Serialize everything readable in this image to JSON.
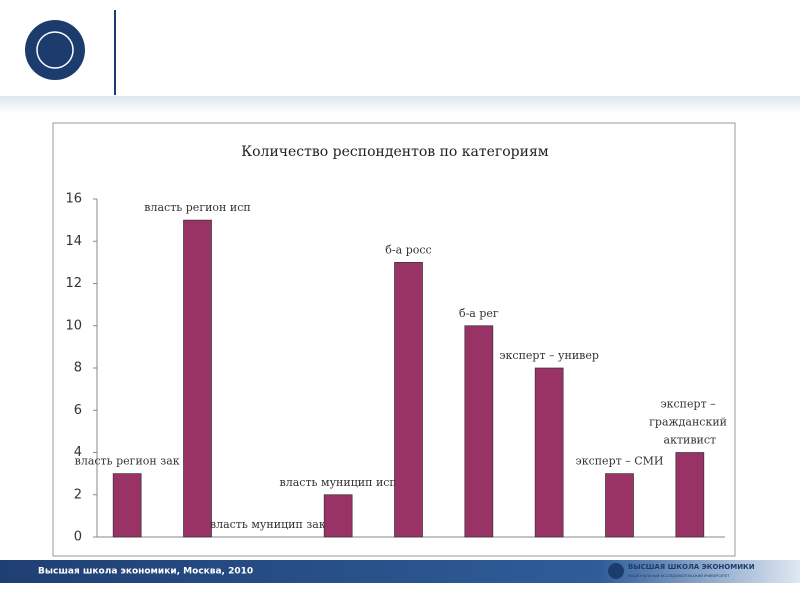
{
  "chart_data": {
    "type": "bar",
    "title": "Количество респондентов по категориям",
    "categories": [
      "власть регион зак",
      "власть регион исп",
      "власть муницип зак",
      "власть муницип исп",
      "б-а росс",
      "б-а рег",
      "эксперт – универ",
      "эксперт – СМИ",
      "эксперт – гражданский активист"
    ],
    "values": [
      3,
      15,
      0,
      2,
      13,
      10,
      8,
      3,
      4
    ],
    "color": "#993366",
    "ylim": [
      0,
      16
    ],
    "yticks": [
      0,
      2,
      4,
      6,
      8,
      10,
      12,
      14,
      16
    ]
  },
  "footer": {
    "text": "Высшая школа экономики, Москва, 2010",
    "logo_title": "ВЫСШАЯ ШКОЛА ЭКОНОМИКИ",
    "logo_subtitle": "НАЦИОНАЛЬНЫЙ ИССЛЕДОВАТЕЛЬСКИЙ УНИВЕРСИТЕТ"
  }
}
